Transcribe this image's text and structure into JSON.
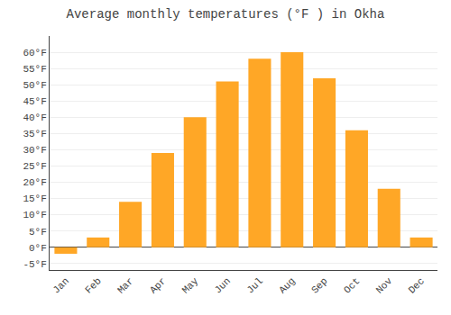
{
  "chart_data": {
    "type": "bar",
    "title": "Average monthly temperatures (°F ) in Okha",
    "categories": [
      "Jan",
      "Feb",
      "Mar",
      "Apr",
      "May",
      "Jun",
      "Jul",
      "Aug",
      "Sep",
      "Oct",
      "Nov",
      "Dec"
    ],
    "values": [
      -2,
      3,
      14,
      29,
      40,
      51,
      58,
      60,
      52,
      36,
      18,
      3
    ],
    "color": "#FFA726",
    "ylim": [
      -7,
      65
    ],
    "yticks": [
      {
        "value": -5,
        "label": "-5°F"
      },
      {
        "value": 0,
        "label": "0°F"
      },
      {
        "value": 5,
        "label": "5°F"
      },
      {
        "value": 10,
        "label": "10°F"
      },
      {
        "value": 15,
        "label": "15°F"
      },
      {
        "value": 20,
        "label": "20°F"
      },
      {
        "value": 25,
        "label": "25°F"
      },
      {
        "value": 30,
        "label": "30°F"
      },
      {
        "value": 35,
        "label": "35°F"
      },
      {
        "value": 40,
        "label": "40°F"
      },
      {
        "value": 45,
        "label": "45°F"
      },
      {
        "value": 50,
        "label": "50°F"
      },
      {
        "value": 55,
        "label": "55°F"
      },
      {
        "value": 60,
        "label": "60°F"
      }
    ],
    "grid": true
  }
}
